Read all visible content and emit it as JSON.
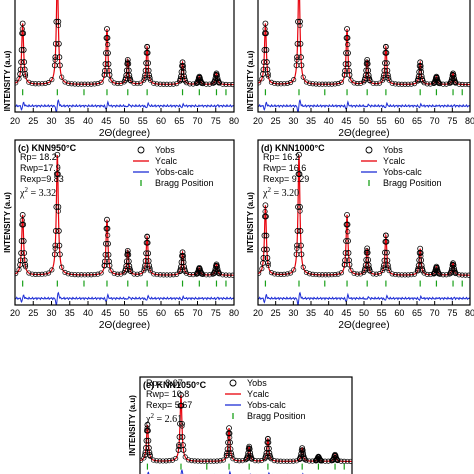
{
  "colors": {
    "obs": "#000000",
    "calc": "#e8000b",
    "diff": "#1f2fd6",
    "bragg": "#19a019",
    "axis": "#000000"
  },
  "common": {
    "xlabel": "2Θ(degree)",
    "ylabel": "INTENSITY (a.u)",
    "xticks": [
      20,
      25,
      30,
      35,
      40,
      45,
      50,
      55,
      60,
      65,
      70,
      75,
      80
    ],
    "xlim": [
      20,
      80
    ],
    "legend_entries": [
      "Yobs",
      "Ycalc",
      "Yobs-calc",
      "Bragg Position"
    ]
  },
  "chart_data": [
    {
      "type": "line",
      "panel": "a",
      "label": "",
      "peaks": [
        [
          22.1,
          0.55
        ],
        [
          31.6,
          1.0
        ],
        [
          45.2,
          0.5
        ],
        [
          50.9,
          0.22
        ],
        [
          56.2,
          0.34
        ],
        [
          65.9,
          0.2
        ],
        [
          70.5,
          0.07
        ],
        [
          75.2,
          0.1
        ]
      ],
      "bragg_positions": [
        22.1,
        31.6,
        38.9,
        45.2,
        50.9,
        56.2,
        65.9,
        70.5,
        75.2,
        77.8
      ],
      "stats": null
    },
    {
      "type": "line",
      "panel": "b",
      "label": "",
      "peaks": [
        [
          22.1,
          0.55
        ],
        [
          31.6,
          1.0
        ],
        [
          45.2,
          0.5
        ],
        [
          50.9,
          0.22
        ],
        [
          56.2,
          0.34
        ],
        [
          65.9,
          0.2
        ],
        [
          70.5,
          0.07
        ],
        [
          75.2,
          0.1
        ]
      ],
      "bragg_positions": [
        22.1,
        31.6,
        38.9,
        45.2,
        50.9,
        56.2,
        65.9,
        70.5,
        75.2,
        77.8
      ],
      "stats": null
    },
    {
      "type": "line",
      "panel": "c",
      "label": "(c) KNN950°C",
      "peaks": [
        [
          22.1,
          0.5
        ],
        [
          31.6,
          1.0
        ],
        [
          45.2,
          0.46
        ],
        [
          50.9,
          0.2
        ],
        [
          56.2,
          0.32
        ],
        [
          65.9,
          0.19
        ],
        [
          70.5,
          0.06
        ],
        [
          75.2,
          0.09
        ]
      ],
      "bragg_positions": [
        22.1,
        31.6,
        38.9,
        45.2,
        50.9,
        56.2,
        65.9,
        70.5,
        75.2,
        77.8
      ],
      "stats": {
        "rp": "Rp=  18.2",
        "rwp": "Rwp=17.9",
        "rexp": "Rexp=9.83",
        "chi_label": "χ",
        "chi_exp": "2",
        "chi_value": "=    3.32"
      }
    },
    {
      "type": "line",
      "panel": "d",
      "label": "(d) KNN1000°C",
      "peaks": [
        [
          22.1,
          0.58
        ],
        [
          31.6,
          1.0
        ],
        [
          45.2,
          0.5
        ],
        [
          50.9,
          0.22
        ],
        [
          56.2,
          0.33
        ],
        [
          65.9,
          0.22
        ],
        [
          70.5,
          0.07
        ],
        [
          75.2,
          0.1
        ]
      ],
      "bragg_positions": [
        22.1,
        31.6,
        38.9,
        45.2,
        50.9,
        56.2,
        65.9,
        70.5,
        75.2,
        77.8
      ],
      "stats": {
        "rp": "Rp=  16.2",
        "rwp": "Rwp= 16.6",
        "rexp": "Rexp= 9.29",
        "chi_label": "χ",
        "chi_exp": "2",
        "chi_value": "=    3.20"
      }
    },
    {
      "type": "line",
      "panel": "e",
      "label": "(e) KNN1050°C",
      "peaks": [
        [
          22.1,
          0.55
        ],
        [
          31.6,
          1.0
        ],
        [
          45.2,
          0.5
        ],
        [
          50.9,
          0.22
        ],
        [
          56.2,
          0.34
        ],
        [
          65.9,
          0.2
        ],
        [
          70.5,
          0.07
        ],
        [
          75.2,
          0.1
        ]
      ],
      "bragg_positions": [
        22.1,
        31.6,
        38.9,
        45.2,
        50.9,
        56.2,
        65.9,
        70.5,
        75.2,
        77.8
      ],
      "stats": {
        "rp": "Rp=  8.07",
        "rwp": "Rwp= 10.8",
        "rexp": "Rexp= 5.67",
        "chi_label": "χ",
        "chi_exp": "2",
        "chi_value": "=   2.61"
      }
    }
  ]
}
